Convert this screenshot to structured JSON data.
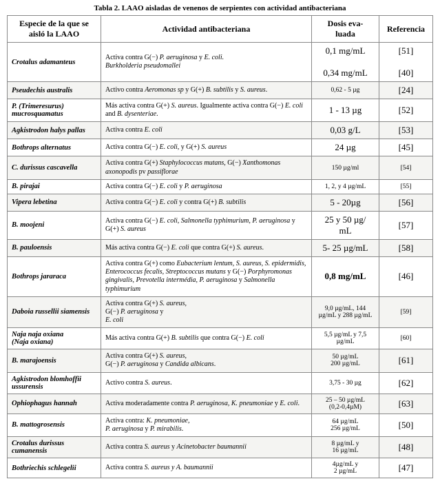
{
  "caption": "Tabla 2. LAAO aisladas de venenos de serpientes con actividad antibacteriana",
  "headers": {
    "species": "Especie de la que se aisló la LAAO",
    "activity": "Actividad antibacteriana",
    "dose": "Dosis eva-\nluada",
    "ref": "Referencia"
  },
  "rows": [
    {
      "species": "Crotalus adamanteus",
      "activity": "Activa contra G(−) <span class='it'>P. aeruginosa</span> y <span class='it'>E. coli.</span><br><span class='it'>Burkholderia pseudomallei</span>",
      "dose": "0,1 mg/mL\n\n0,34 mg/mL",
      "dose_cls": "big oline",
      "ref": "[51]\n\n[40]",
      "ref_cls": "big oline",
      "alt": false
    },
    {
      "species": "Pseudechis australis",
      "activity": "Activo contra <span class='it'>Aeromonas sp</span> y G(+) <span class='it'>B. subtilis</span> y <span class='it'>S. aureus</span>.",
      "dose": "0,62 - 5 µg",
      "dose_cls": "sm",
      "ref": "[24]",
      "ref_cls": "big",
      "alt": true
    },
    {
      "species": "P. (Trimeresurus) mucrosquamatus",
      "activity": "Más activa contra G(+) <span class='it'>S. aureus</span>. Igualmente activa contra G(−) <span class='it'>E. coli</span> and <span class='it'>B. dysenteriae</span>.",
      "dose": "1 - 13 µg",
      "dose_cls": "big",
      "ref": "[52]",
      "ref_cls": "big",
      "alt": false
    },
    {
      "species": "Agkistrodon halys pallas",
      "activity": "Activa contra <span class='it'>E. coli</span>",
      "dose": "0,03 g/L",
      "dose_cls": "big",
      "ref": "[53]",
      "ref_cls": "big",
      "alt": true
    },
    {
      "species": "Bothrops alternatus",
      "activity": "Activa contra G(−) <span class='it'>E. coli</span>, y G(+) <span class='it'>S. aureus</span>",
      "dose": "24 µg",
      "dose_cls": "big",
      "ref": "[45]",
      "ref_cls": "big",
      "alt": false
    },
    {
      "species": "C. durissus cascavella",
      "activity": "Activa contra G(+) <span class='it'>Staphylococcus mutans</span>, G(−) <span class='it'>Xanthomonas axonopodis</span> pv <span class='it'>passiflorae</span>",
      "dose": "150 µg/ml",
      "dose_cls": "sm",
      "ref": "[54]",
      "ref_cls": "sm",
      "alt": true
    },
    {
      "species": "B. pirajai",
      "activity": "Activa contra G(−) <span class='it'>E. coli</span> y <span class='it'>P. aeruginosa</span>",
      "dose": "1, 2, y 4 µg/mL",
      "dose_cls": "sm",
      "ref": "[55]",
      "ref_cls": "sm",
      "alt": false
    },
    {
      "species": "Vipera lebetina",
      "activity": "Activa contra G(−) <span class='it'>E. coli</span> y contra G(+) <span class='it'>B. subtilis</span>",
      "dose": "5 - 20µg",
      "dose_cls": "big",
      "ref": "[56]",
      "ref_cls": "big",
      "alt": true
    },
    {
      "species": "B. moojeni",
      "activity": "Activa contra G(−) <span class='it'>E. coli, Salmonella typhimurium, P. aeruginosa</span> y G(+) <span class='it'>S. aureus</span>",
      "dose": "25 y 50 µg/\nmL",
      "dose_cls": "big oline",
      "ref": "[57]",
      "ref_cls": "big",
      "alt": false
    },
    {
      "species": "B. pauloensis",
      "activity": "Más activa contra G(−) <span class='it'>E. coli</span> que contra G(+) <span class='it'>S. aureus</span>.",
      "dose": "5- 25 µg/mL",
      "dose_cls": "big",
      "ref": "[58]",
      "ref_cls": "big",
      "alt": true
    },
    {
      "species": "Bothrops jararaca",
      "activity": "Activa contra G(+) como <span class='it'>Eubacterium lentum, S. aureus, S. epidermidis, Enterococcus fecalis, Streptococcus mutans</span> y G(−) <span class='it'>Porphyromonas gingivalis, Prevotella intermédia, P. aeruginosa</span> y <span class='it'>Salmonella typhimurium</span>",
      "dose": "0,8 mg/mL",
      "dose_cls": "big b",
      "ref": "[46]",
      "ref_cls": "big",
      "alt": false
    },
    {
      "species": "Daboia russellii siamensis",
      "activity": "Activa contra G(+) <span class='it'>S. aureus</span>,<br>G(−) <span class='it'>P. aeruginosa</span> y<br><span class='it'>E. coli</span>",
      "dose": "9,0 µg/mL, 144 µg/mL y 288 µg/mL",
      "dose_cls": "sm",
      "ref": "[59]",
      "ref_cls": "sm",
      "alt": true
    },
    {
      "species": "Naja naja oxiana\n(Naja oxiana)",
      "activity": "Más activa contra G(+) <span class='it'>B. subtilis</span> que contra G(−) <span class='it'>E. coli</span>",
      "dose": "5,5 µg/mL y 7,5 µg/mL",
      "dose_cls": "sm",
      "ref": "[60]",
      "ref_cls": "sm",
      "alt": false
    },
    {
      "species": "B. marajoensis",
      "activity": "Activa contra G(+) <span class='it'>S. aureus</span>,<br>G(−) <span class='it'>P. aeruginosa</span> y <span class='it'>Candida albicans</span>.",
      "dose": "50 µg/mL\n200 µg/mL",
      "dose_cls": "sm oline",
      "ref": "[61]",
      "ref_cls": "big",
      "alt": true
    },
    {
      "species": "Agkistrodon blomhoffii ussurensis",
      "activity": "Activo contra <span class='it'>S. aureus</span>.",
      "dose": "3,75 - 30 µg",
      "dose_cls": "sm",
      "ref": "[62]",
      "ref_cls": "big",
      "alt": false
    },
    {
      "species": "Ophiophagus hannah",
      "activity": "Activa moderadamente contra <span class='it'>P. aeruginosa, K. pneumoniae</span> y <span class='it'>E. coli</span>.",
      "dose": "25 – 50 µg/mL\n(0,2-0,4µM)",
      "dose_cls": "sm oline",
      "ref": "[63]",
      "ref_cls": "big",
      "alt": true
    },
    {
      "species": "B. mattogrosensis",
      "activity": "Activa contra: <span class='it'>K. pneumoniae,</span><br> <span class='it'>P. aeruginosa</span> y <span class='it'>P. mirabilis</span>.",
      "dose": "64 µg/mL\n256 µg/mL",
      "dose_cls": "sm oline",
      "ref": "[50]",
      "ref_cls": "big",
      "alt": false
    },
    {
      "species": "Crotalus durissus cumanensis",
      "activity": "Activa contra <span class='it'>S. aureus</span>  y <span class='it'>Acinetobacter baumannii</span>",
      "dose": "8 µg/mL y\n16 µg/mL",
      "dose_cls": "sm oline",
      "ref": "[48]",
      "ref_cls": "big",
      "alt": true
    },
    {
      "species": "Bothriechis schlegelii",
      "activity": "Activa contra <span class='it'>S. aureus y A. baumannii</span>",
      "dose": "4µg/mL  y\n2 µg/mL",
      "dose_cls": "sm oline",
      "ref": "[47]",
      "ref_cls": "big",
      "alt": false
    }
  ]
}
